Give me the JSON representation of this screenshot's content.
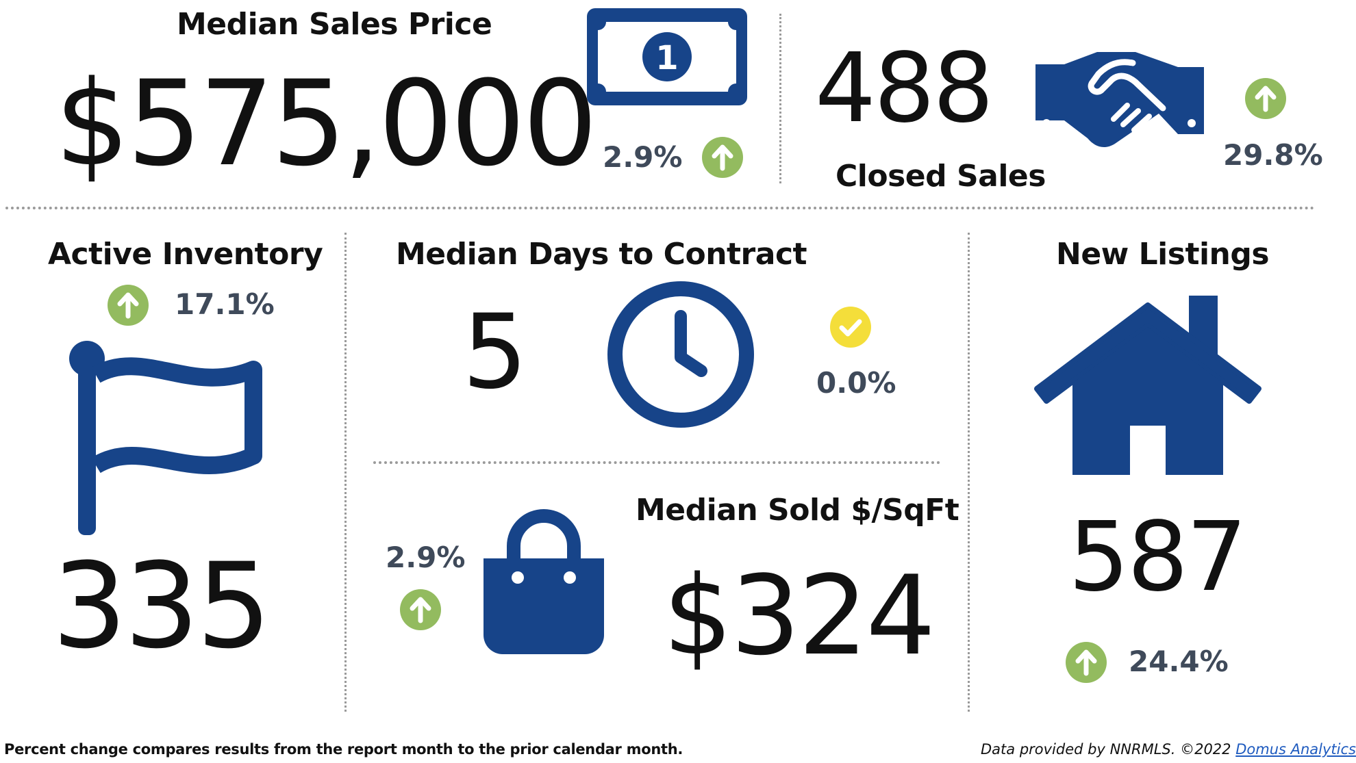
{
  "colors": {
    "brand_blue": "#174489",
    "up_green": "#93bb5f",
    "neutral_yellow": "#f4de3a",
    "pct_text": "#3f4a5a",
    "link_blue": "#1f5bbf"
  },
  "median_sales_price": {
    "title": "Median Sales Price",
    "value": "$575,000",
    "change": "2.9%",
    "trend": "up",
    "icon": "dollar-bill-icon"
  },
  "closed_sales": {
    "title": "Closed Sales",
    "value": "488",
    "change": "29.8%",
    "trend": "up",
    "icon": "handshake-icon"
  },
  "active_inventory": {
    "title": "Active Inventory",
    "value": "335",
    "change": "17.1%",
    "trend": "up",
    "icon": "flag-icon"
  },
  "median_days_to_contract": {
    "title": "Median Days to Contract",
    "value": "5",
    "change": "0.0%",
    "trend": "unchanged",
    "icon": "clock-icon"
  },
  "median_sold_per_sqft": {
    "title": "Median Sold $/SqFt",
    "value": "$324",
    "change": "2.9%",
    "trend": "up",
    "icon": "shopping-bag-icon"
  },
  "new_listings": {
    "title": "New Listings",
    "value": "587",
    "change": "24.4%",
    "trend": "up",
    "icon": "house-icon"
  },
  "footer": {
    "note": "Percent change compares results from the report month to the prior calendar month.",
    "credit": "Data provided by NNRMLS. ©2022",
    "link_text": "Domus Analytics"
  }
}
